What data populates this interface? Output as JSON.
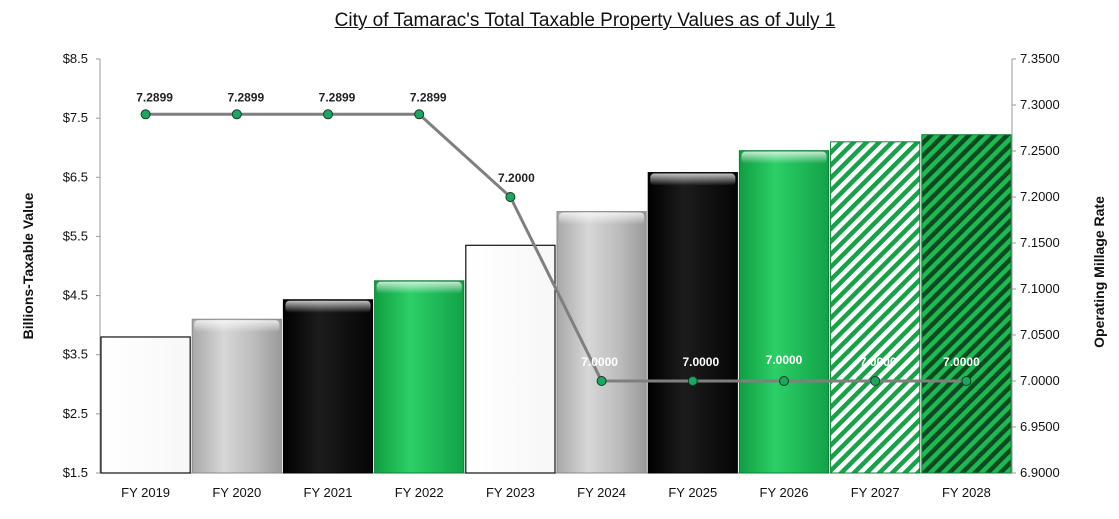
{
  "chart_data": {
    "title": "City of Tamarac's Total Taxable Property Values as of July 1",
    "type": "bar",
    "categories": [
      "FY 2019",
      "FY 2020",
      "FY 2021",
      "FY 2022",
      "FY 2023",
      "FY 2024",
      "FY 2025",
      "FY 2026",
      "FY 2027",
      "FY 2028"
    ],
    "ylabel": "Billions-Taxable Value",
    "ylim": [
      1.5,
      8.5
    ],
    "yticks": [
      "$1.5",
      "$2.5",
      "$3.5",
      "$4.5",
      "$5.5",
      "$6.5",
      "$7.5",
      "$8.5"
    ],
    "y2label": "Operating Millage Rate",
    "y2lim": [
      6.9,
      7.35
    ],
    "y2ticks": [
      "6.9000",
      "6.9500",
      "7.0000",
      "7.0500",
      "7.1000",
      "7.1500",
      "7.2000",
      "7.2500",
      "7.3000",
      "7.3500"
    ],
    "series": [
      {
        "type": "bar",
        "values": [
          3.8,
          4.1,
          4.43,
          4.75,
          5.35,
          5.92,
          6.58,
          6.95,
          7.1,
          7.22
        ],
        "fills": [
          "white",
          "silver",
          "black",
          "green",
          "white",
          "silver",
          "black",
          "green",
          "green-hatch-light",
          "green-hatch-dark"
        ]
      },
      {
        "type": "line",
        "axis": "right",
        "values": [
          7.2899,
          7.2899,
          7.2899,
          7.2899,
          7.2,
          7.0,
          7.0,
          7.0,
          7.0,
          7.0
        ],
        "labels": [
          "7.2899",
          "7.2899",
          "7.2899",
          "7.2899",
          "7.2000",
          "7.0000",
          "7.0000",
          "7.0000",
          "7.0000",
          "7.0000"
        ]
      }
    ],
    "grid": false,
    "colors": {
      "green": "#1db954",
      "silver": "#bdbdbd",
      "black": "#0d0d0d",
      "line": "#7f7f7f",
      "marker": "#1aa860"
    }
  }
}
